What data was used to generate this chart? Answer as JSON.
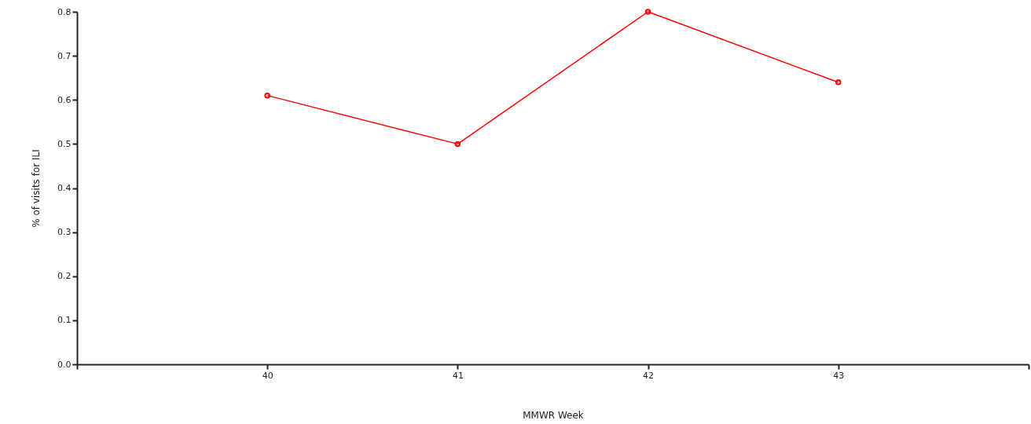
{
  "chart_data": {
    "type": "line",
    "xlabel": "MMWR Week",
    "ylabel": "% of visits for ILI",
    "x": [
      40,
      41,
      42,
      43
    ],
    "series": [
      {
        "color": "#ff0000",
        "values": [
          0.61,
          0.5,
          0.8,
          0.64
        ]
      }
    ],
    "xlim": [
      39,
      44
    ],
    "xticks": [
      {
        "value": 39,
        "label": null
      },
      40,
      41,
      42,
      43,
      {
        "value": 44,
        "label": null
      }
    ],
    "ylim": [
      0,
      0.8
    ],
    "yticks": [
      {
        "value": 0,
        "label": "0.0"
      },
      0.1,
      0.2,
      0.3,
      0.4,
      0.5,
      0.6,
      0.7,
      0.8
    ],
    "marker": "circle",
    "line_style": "solid",
    "grid": false
  }
}
